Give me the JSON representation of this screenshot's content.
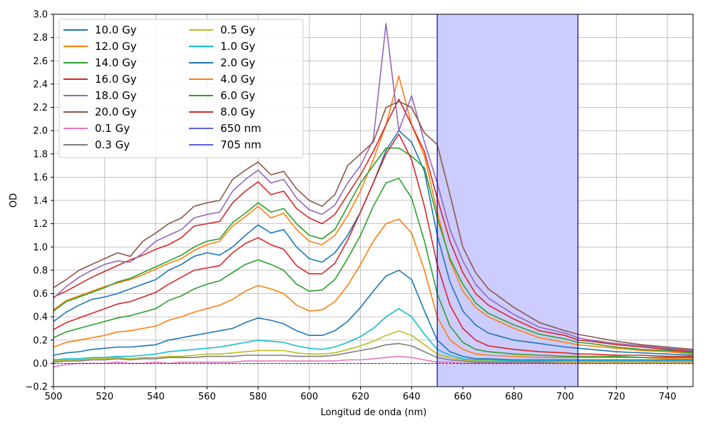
{
  "chart_data": {
    "type": "line",
    "title": "",
    "xlabel": "Longitud de onda (nm)",
    "ylabel": "OD",
    "xlim": [
      500,
      750
    ],
    "ylim": [
      -0.2,
      3.0
    ],
    "xticks": [
      500,
      520,
      540,
      560,
      580,
      600,
      620,
      640,
      660,
      680,
      700,
      720,
      740
    ],
    "xtick_labels": [
      "500",
      "520",
      "540",
      "560",
      "580",
      "600",
      "620",
      "640",
      "660",
      "680",
      "700",
      "720",
      "740"
    ],
    "yticks": [
      -0.2,
      0.0,
      0.2,
      0.4,
      0.6,
      0.8,
      1.0,
      1.2,
      1.4,
      1.6,
      1.8,
      2.0,
      2.2,
      2.4,
      2.6,
      2.8,
      3.0
    ],
    "ytick_labels": [
      "−0.2",
      "0.0",
      "0.2",
      "0.4",
      "0.6",
      "0.8",
      "1.0",
      "1.2",
      "1.4",
      "1.6",
      "1.8",
      "2.0",
      "2.2",
      "2.4",
      "2.6",
      "2.8",
      "3.0"
    ],
    "grid": true,
    "legend_position": "top-left",
    "legend_columns": 2,
    "shaded_region": {
      "x_start": 650,
      "x_end": 705,
      "color": "#ccccff",
      "edge_color": "#0000cc"
    },
    "baseline": {
      "y": 0.0,
      "color": "#000000",
      "style": "dashed"
    },
    "x": [
      500,
      505,
      510,
      515,
      520,
      525,
      530,
      535,
      540,
      545,
      550,
      555,
      560,
      565,
      570,
      575,
      580,
      585,
      590,
      595,
      600,
      605,
      610,
      615,
      620,
      625,
      630,
      635,
      640,
      645,
      650,
      655,
      660,
      665,
      670,
      680,
      690,
      700,
      705,
      710,
      720,
      730,
      740,
      750
    ],
    "series": [
      {
        "name": "10.0 Gy",
        "color": "#1f77b4",
        "values": [
          0.36,
          0.44,
          0.5,
          0.55,
          0.57,
          0.6,
          0.64,
          0.68,
          0.72,
          0.8,
          0.85,
          0.92,
          0.95,
          0.93,
          1.0,
          1.1,
          1.19,
          1.12,
          1.15,
          1.0,
          0.9,
          0.87,
          0.95,
          1.1,
          1.3,
          1.55,
          1.83,
          2.0,
          1.9,
          1.65,
          1.1,
          0.7,
          0.45,
          0.33,
          0.26,
          0.2,
          0.17,
          0.14,
          0.13,
          0.12,
          0.1,
          0.09,
          0.08,
          0.07
        ]
      },
      {
        "name": "12.0 Gy",
        "color": "#ff7f0e",
        "values": [
          0.46,
          0.54,
          0.58,
          0.62,
          0.66,
          0.69,
          0.72,
          0.76,
          0.81,
          0.86,
          0.9,
          0.97,
          1.02,
          1.05,
          1.18,
          1.26,
          1.35,
          1.25,
          1.29,
          1.15,
          1.05,
          1.02,
          1.1,
          1.27,
          1.48,
          1.75,
          2.05,
          2.47,
          2.05,
          1.78,
          1.3,
          0.88,
          0.62,
          0.48,
          0.4,
          0.3,
          0.22,
          0.18,
          0.16,
          0.15,
          0.13,
          0.11,
          0.1,
          0.08
        ]
      },
      {
        "name": "14.0 Gy",
        "color": "#2ca02c",
        "values": [
          0.45,
          0.53,
          0.57,
          0.61,
          0.65,
          0.7,
          0.73,
          0.78,
          0.83,
          0.88,
          0.93,
          1.0,
          1.05,
          1.07,
          1.21,
          1.29,
          1.38,
          1.3,
          1.33,
          1.2,
          1.1,
          1.07,
          1.15,
          1.35,
          1.55,
          1.7,
          1.85,
          1.85,
          1.78,
          1.68,
          1.25,
          0.9,
          0.68,
          0.52,
          0.43,
          0.33,
          0.25,
          0.21,
          0.18,
          0.17,
          0.14,
          0.12,
          0.11,
          0.09
        ]
      },
      {
        "name": "16.0 Gy",
        "color": "#d62728",
        "values": [
          0.57,
          0.62,
          0.68,
          0.74,
          0.79,
          0.84,
          0.89,
          0.93,
          0.98,
          1.02,
          1.08,
          1.18,
          1.2,
          1.22,
          1.38,
          1.48,
          1.56,
          1.45,
          1.48,
          1.33,
          1.25,
          1.2,
          1.28,
          1.45,
          1.62,
          1.82,
          2.05,
          2.27,
          2.05,
          1.82,
          1.42,
          1.05,
          0.78,
          0.6,
          0.5,
          0.38,
          0.28,
          0.24,
          0.2,
          0.19,
          0.16,
          0.14,
          0.12,
          0.1
        ]
      },
      {
        "name": "18.0 Gy",
        "color": "#9467bd",
        "values": [
          0.56,
          0.66,
          0.74,
          0.8,
          0.85,
          0.88,
          0.87,
          0.95,
          1.05,
          1.1,
          1.15,
          1.25,
          1.28,
          1.3,
          1.48,
          1.58,
          1.66,
          1.55,
          1.58,
          1.42,
          1.32,
          1.28,
          1.36,
          1.55,
          1.7,
          1.92,
          2.92,
          2.0,
          2.3,
          1.9,
          1.55,
          1.15,
          0.88,
          0.68,
          0.56,
          0.42,
          0.31,
          0.26,
          0.22,
          0.2,
          0.17,
          0.15,
          0.13,
          0.11
        ]
      },
      {
        "name": "20.0 Gy",
        "color": "#8c564b",
        "values": [
          0.65,
          0.72,
          0.8,
          0.85,
          0.9,
          0.95,
          0.92,
          1.05,
          1.12,
          1.2,
          1.25,
          1.35,
          1.38,
          1.4,
          1.58,
          1.66,
          1.73,
          1.62,
          1.65,
          1.5,
          1.4,
          1.35,
          1.45,
          1.7,
          1.8,
          1.9,
          2.2,
          2.25,
          2.2,
          1.98,
          1.88,
          1.45,
          1.0,
          0.78,
          0.64,
          0.48,
          0.35,
          0.28,
          0.25,
          0.23,
          0.19,
          0.16,
          0.14,
          0.12
        ]
      },
      {
        "name": "0.1 Gy",
        "color": "#e377c2",
        "values": [
          -0.03,
          -0.01,
          0.0,
          0.0,
          0.0,
          0.01,
          0.0,
          0.0,
          0.01,
          0.0,
          0.01,
          0.01,
          0.01,
          0.01,
          0.01,
          0.02,
          0.02,
          0.02,
          0.02,
          0.02,
          0.02,
          0.02,
          0.02,
          0.03,
          0.03,
          0.04,
          0.05,
          0.06,
          0.05,
          0.03,
          0.01,
          0.01,
          0.0,
          0.0,
          0.0,
          0.0,
          0.0,
          0.0,
          0.0,
          0.0,
          0.0,
          0.0,
          0.0,
          0.0
        ]
      },
      {
        "name": "0.3 Gy",
        "color": "#7f7f7f",
        "values": [
          0.01,
          0.02,
          0.02,
          0.03,
          0.03,
          0.04,
          0.03,
          0.04,
          0.04,
          0.05,
          0.05,
          0.05,
          0.06,
          0.06,
          0.06,
          0.07,
          0.07,
          0.07,
          0.07,
          0.06,
          0.06,
          0.06,
          0.07,
          0.09,
          0.11,
          0.13,
          0.16,
          0.17,
          0.15,
          0.1,
          0.05,
          0.03,
          0.02,
          0.01,
          0.01,
          0.01,
          0.01,
          0.01,
          0.01,
          0.01,
          0.01,
          0.01,
          0.01,
          0.01
        ]
      },
      {
        "name": "0.5 Gy",
        "color": "#bcbd22",
        "values": [
          0.02,
          0.03,
          0.03,
          0.04,
          0.04,
          0.05,
          0.04,
          0.05,
          0.05,
          0.06,
          0.06,
          0.07,
          0.08,
          0.08,
          0.09,
          0.1,
          0.11,
          0.11,
          0.11,
          0.09,
          0.08,
          0.08,
          0.09,
          0.12,
          0.15,
          0.19,
          0.24,
          0.28,
          0.24,
          0.16,
          0.08,
          0.05,
          0.03,
          0.02,
          0.02,
          0.02,
          0.02,
          0.01,
          0.01,
          0.01,
          0.01,
          0.01,
          0.01,
          0.01
        ]
      },
      {
        "name": "1.0 Gy",
        "color": "#17becf",
        "values": [
          0.03,
          0.04,
          0.04,
          0.05,
          0.05,
          0.06,
          0.06,
          0.07,
          0.08,
          0.1,
          0.11,
          0.12,
          0.13,
          0.14,
          0.16,
          0.18,
          0.2,
          0.19,
          0.18,
          0.15,
          0.13,
          0.12,
          0.14,
          0.18,
          0.23,
          0.3,
          0.4,
          0.47,
          0.4,
          0.25,
          0.12,
          0.07,
          0.04,
          0.03,
          0.03,
          0.02,
          0.02,
          0.02,
          0.02,
          0.02,
          0.02,
          0.02,
          0.02,
          0.02
        ]
      },
      {
        "name": "2.0 Gy",
        "color": "#1f77b4",
        "values": [
          0.07,
          0.09,
          0.1,
          0.12,
          0.13,
          0.14,
          0.14,
          0.15,
          0.16,
          0.2,
          0.22,
          0.24,
          0.26,
          0.28,
          0.3,
          0.35,
          0.39,
          0.37,
          0.34,
          0.28,
          0.24,
          0.24,
          0.28,
          0.36,
          0.48,
          0.62,
          0.75,
          0.8,
          0.72,
          0.45,
          0.2,
          0.1,
          0.06,
          0.04,
          0.04,
          0.03,
          0.03,
          0.03,
          0.03,
          0.03,
          0.03,
          0.03,
          0.03,
          0.03
        ]
      },
      {
        "name": "4.0 Gy",
        "color": "#ff7f0e",
        "values": [
          0.14,
          0.18,
          0.2,
          0.22,
          0.24,
          0.27,
          0.28,
          0.3,
          0.32,
          0.37,
          0.4,
          0.44,
          0.47,
          0.5,
          0.55,
          0.62,
          0.67,
          0.64,
          0.6,
          0.5,
          0.45,
          0.46,
          0.53,
          0.67,
          0.85,
          1.05,
          1.2,
          1.24,
          1.12,
          0.8,
          0.4,
          0.2,
          0.12,
          0.08,
          0.07,
          0.06,
          0.05,
          0.05,
          0.05,
          0.05,
          0.05,
          0.05,
          0.04,
          0.04
        ]
      },
      {
        "name": "6.0 Gy",
        "color": "#2ca02c",
        "values": [
          0.22,
          0.27,
          0.3,
          0.33,
          0.36,
          0.39,
          0.41,
          0.44,
          0.47,
          0.54,
          0.58,
          0.64,
          0.68,
          0.71,
          0.78,
          0.85,
          0.89,
          0.85,
          0.8,
          0.68,
          0.62,
          0.63,
          0.72,
          0.9,
          1.1,
          1.35,
          1.55,
          1.59,
          1.42,
          1.05,
          0.6,
          0.32,
          0.18,
          0.12,
          0.1,
          0.08,
          0.07,
          0.06,
          0.06,
          0.06,
          0.06,
          0.05,
          0.05,
          0.05
        ]
      },
      {
        "name": "8.0 Gy",
        "color": "#d62728",
        "values": [
          0.29,
          0.35,
          0.39,
          0.43,
          0.47,
          0.51,
          0.53,
          0.57,
          0.61,
          0.68,
          0.74,
          0.8,
          0.82,
          0.84,
          0.95,
          1.03,
          1.08,
          1.02,
          0.98,
          0.84,
          0.77,
          0.77,
          0.86,
          1.06,
          1.3,
          1.55,
          1.8,
          1.97,
          1.75,
          1.35,
          0.85,
          0.5,
          0.3,
          0.2,
          0.15,
          0.12,
          0.1,
          0.09,
          0.08,
          0.08,
          0.07,
          0.07,
          0.06,
          0.06
        ]
      }
    ],
    "reference_lines": [
      {
        "name": "650 nm",
        "x": 650,
        "color": "#0000cc"
      },
      {
        "name": "705 nm",
        "x": 705,
        "color": "#0000cc"
      }
    ]
  }
}
